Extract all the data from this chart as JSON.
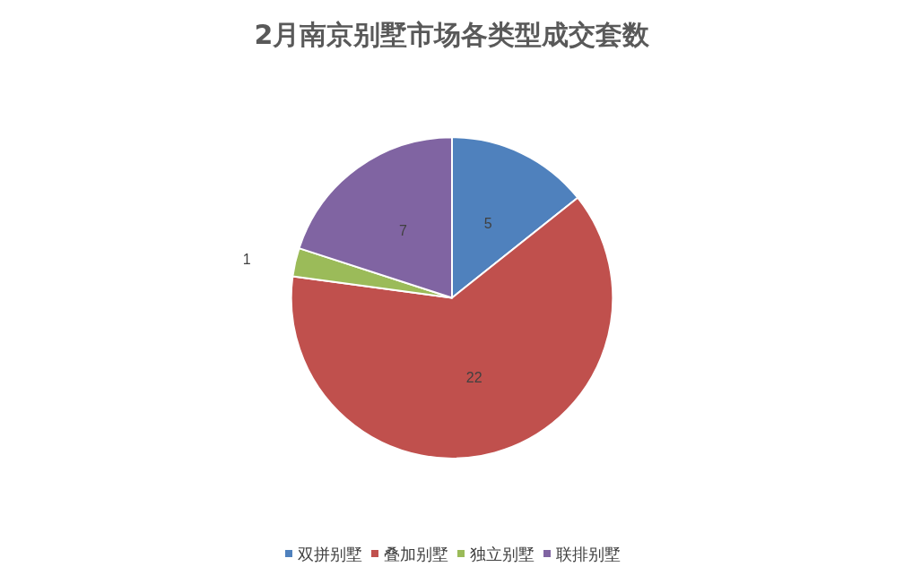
{
  "chart_data": {
    "type": "pie",
    "title": "2月南京别墅市场各类型成交套数",
    "categories": [
      "双拼别墅",
      "叠加别墅",
      "独立别墅",
      "联排别墅"
    ],
    "values": [
      5,
      22,
      1,
      7
    ],
    "colors": [
      "#4f81bd",
      "#c0504d",
      "#9bbb59",
      "#8064a2"
    ],
    "data_labels": true,
    "legend": "bottom"
  }
}
